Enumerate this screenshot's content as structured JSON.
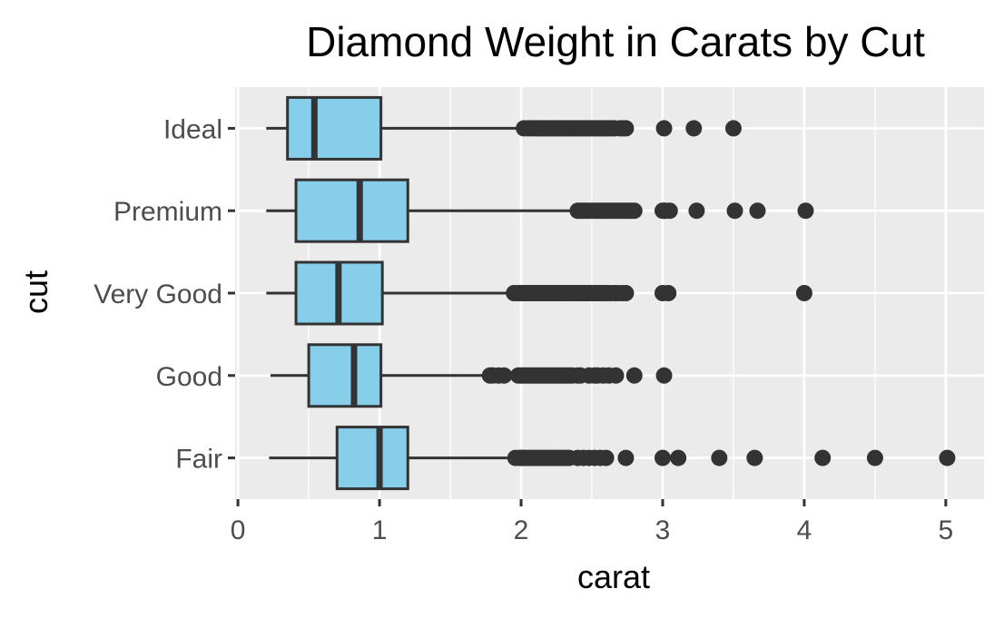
{
  "chart_data": {
    "type": "boxplot",
    "orientation": "horizontal",
    "title": "Diamond Weight in Carats by Cut",
    "xlabel": "carat",
    "ylabel": "cut",
    "xlim": [
      -0.02,
      5.27
    ],
    "xticks": [
      0,
      1,
      2,
      3,
      4,
      5
    ],
    "x_minor_ticks": [
      0.5,
      1.5,
      2.5,
      3.5,
      4.5
    ],
    "grid": true,
    "legend": "none",
    "colors": {
      "panel": "#ebebeb",
      "grid": "#ffffff",
      "box_fill": "#87ceeb",
      "stroke": "#333333",
      "tick_text": "#4d4d4d"
    },
    "categories": [
      "Ideal",
      "Premium",
      "Very Good",
      "Good",
      "Fair"
    ],
    "boxes": [
      {
        "category": "Ideal",
        "whisker_low": 0.2,
        "q1": 0.35,
        "median": 0.54,
        "q3": 1.01,
        "whisker_high": 2.0,
        "outliers": [
          2.02,
          2.05,
          2.08,
          2.1,
          2.12,
          2.14,
          2.16,
          2.18,
          2.2,
          2.22,
          2.24,
          2.26,
          2.28,
          2.3,
          2.32,
          2.34,
          2.36,
          2.38,
          2.4,
          2.42,
          2.44,
          2.46,
          2.48,
          2.5,
          2.52,
          2.54,
          2.56,
          2.58,
          2.6,
          2.62,
          2.64,
          2.66,
          2.7,
          2.72,
          2.74,
          3.01,
          3.22,
          3.5
        ]
      },
      {
        "category": "Premium",
        "whisker_low": 0.2,
        "q1": 0.41,
        "median": 0.86,
        "q3": 1.2,
        "whisker_high": 2.38,
        "outliers": [
          2.4,
          2.42,
          2.44,
          2.46,
          2.48,
          2.5,
          2.52,
          2.54,
          2.56,
          2.58,
          2.6,
          2.62,
          2.64,
          2.66,
          2.68,
          2.7,
          2.72,
          2.74,
          2.76,
          2.78,
          2.8,
          3.0,
          3.01,
          3.02,
          3.05,
          3.24,
          3.51,
          3.67,
          4.01
        ]
      },
      {
        "category": "Very Good",
        "whisker_low": 0.2,
        "q1": 0.41,
        "median": 0.71,
        "q3": 1.02,
        "whisker_high": 1.93,
        "outliers": [
          1.95,
          1.98,
          2.0,
          2.02,
          2.04,
          2.06,
          2.08,
          2.1,
          2.12,
          2.14,
          2.16,
          2.18,
          2.2,
          2.22,
          2.24,
          2.26,
          2.28,
          2.3,
          2.32,
          2.34,
          2.36,
          2.38,
          2.4,
          2.42,
          2.44,
          2.46,
          2.48,
          2.5,
          2.52,
          2.54,
          2.56,
          2.58,
          2.6,
          2.63,
          2.66,
          2.68,
          2.71,
          2.74,
          3.0,
          3.04,
          4.0
        ]
      },
      {
        "category": "Good",
        "whisker_low": 0.23,
        "q1": 0.5,
        "median": 0.82,
        "q3": 1.01,
        "whisker_high": 1.77,
        "outliers": [
          1.78,
          1.8,
          1.84,
          1.88,
          1.98,
          2.0,
          2.02,
          2.04,
          2.06,
          2.08,
          2.1,
          2.12,
          2.14,
          2.16,
          2.18,
          2.2,
          2.22,
          2.24,
          2.26,
          2.28,
          2.3,
          2.32,
          2.34,
          2.36,
          2.4,
          2.42,
          2.48,
          2.52,
          2.54,
          2.58,
          2.62,
          2.67,
          2.8,
          3.01
        ]
      },
      {
        "category": "Fair",
        "whisker_low": 0.22,
        "q1": 0.7,
        "median": 1.0,
        "q3": 1.2,
        "whisker_high": 1.95,
        "outliers": [
          1.96,
          1.99,
          2.0,
          2.01,
          2.02,
          2.04,
          2.06,
          2.08,
          2.1,
          2.12,
          2.14,
          2.16,
          2.18,
          2.2,
          2.22,
          2.24,
          2.26,
          2.28,
          2.3,
          2.32,
          2.34,
          2.4,
          2.44,
          2.48,
          2.52,
          2.56,
          2.6,
          2.74,
          3.0,
          3.11,
          3.4,
          3.65,
          4.13,
          4.5,
          5.01
        ]
      }
    ]
  }
}
